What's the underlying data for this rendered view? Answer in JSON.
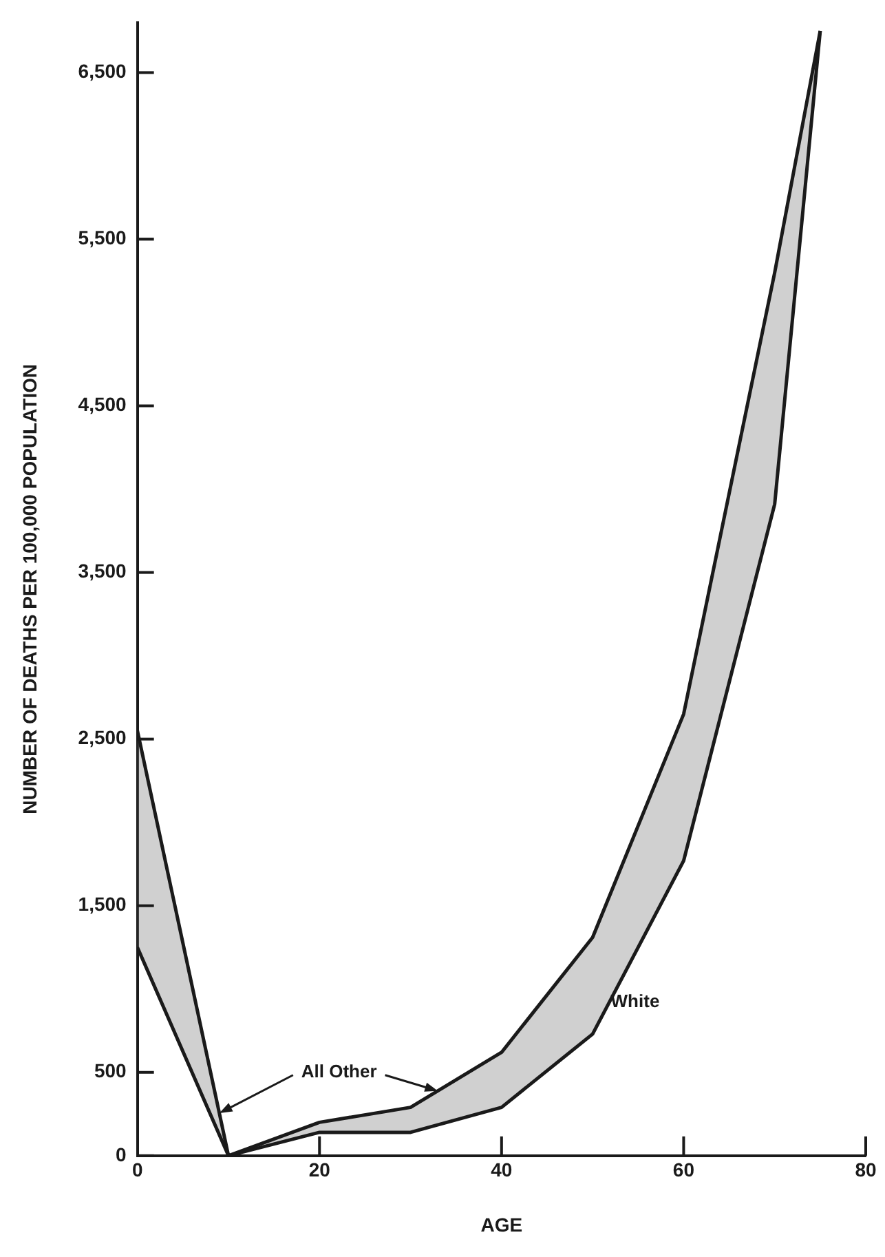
{
  "chart_data": {
    "type": "line",
    "xlabel": "AGE",
    "ylabel": "NUMBER OF DEATHS PER 100,000 POPULATION",
    "x": [
      0,
      10,
      20,
      30,
      40,
      50,
      60,
      70,
      75
    ],
    "series": [
      {
        "color": "#1a1a1a",
        "values": [
          1250,
          0,
          140,
          140,
          290,
          730,
          1770,
          3910,
          6750
        ]
      },
      {
        "color": "#1a1a1a",
        "values": [
          2550,
          0,
          200,
          290,
          620,
          1310,
          2650,
          5300,
          6750
        ]
      }
    ],
    "annotations": [
      {
        "text": "All Other",
        "x": 9,
        "y": 255
      },
      {
        "text": "White",
        "x": 52,
        "y": 920
      }
    ],
    "xlim": [
      0,
      80
    ],
    "xticks": [
      0,
      20,
      40,
      60,
      80
    ],
    "ylim": [
      0,
      6800
    ],
    "yticks": [
      0,
      500,
      {
        "value": 1500,
        "label": "1,500"
      },
      {
        "value": 2500,
        "label": "2,500"
      },
      {
        "value": 3500,
        "label": "3,500"
      },
      {
        "value": 4500,
        "label": "4,500"
      },
      {
        "value": 5500,
        "label": "5,500"
      },
      {
        "value": 6500,
        "label": "6,500"
      }
    ],
    "grid": false,
    "marker": "none",
    "line_style": "solid"
  }
}
